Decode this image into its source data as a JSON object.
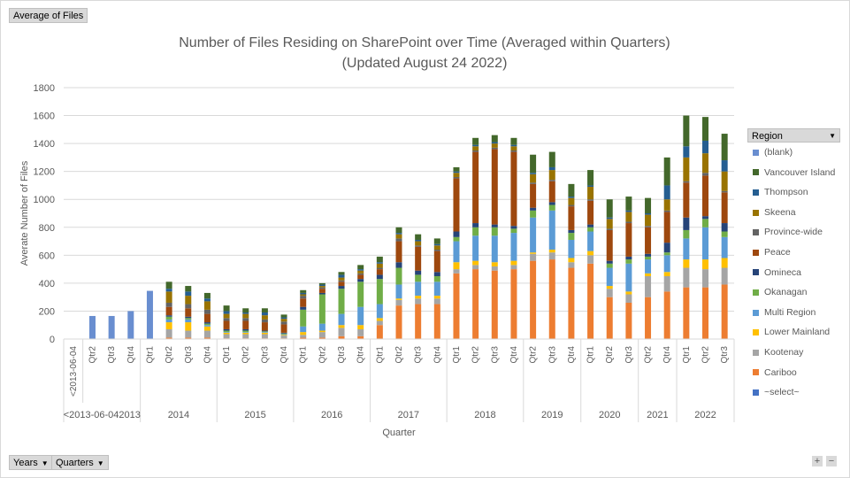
{
  "field_buttons": {
    "values_label": "Average of Files",
    "years_label": "Years",
    "quarters_label": "Quarters"
  },
  "legend": {
    "header": "Region"
  },
  "zoom": {
    "plus": "+",
    "minus": "−"
  },
  "chart_data": {
    "type": "bar",
    "stacked": true,
    "title": "Number of Files Residing on SharePoint over Time (Averaged within Quarters)",
    "subtitle": "(Updated August 24 2022)",
    "xlabel": "Quarter",
    "ylabel": "Averate Number of Files",
    "ylim": [
      0,
      1800
    ],
    "yticks": [
      0,
      200,
      400,
      600,
      800,
      1000,
      1200,
      1400,
      1600,
      1800
    ],
    "grid": true,
    "legend_position": "right",
    "categories": [
      {
        "group": "<2013-06-04",
        "label": "<2013-06-04"
      },
      {
        "group": "2013",
        "label": "Qtr2"
      },
      {
        "group": "2013",
        "label": "Qtr3"
      },
      {
        "group": "2013",
        "label": "Qtr4"
      },
      {
        "group": "2014",
        "label": "Qtr1"
      },
      {
        "group": "2014",
        "label": "Qtr2"
      },
      {
        "group": "2014",
        "label": "Qtr3"
      },
      {
        "group": "2014",
        "label": "Qtr4"
      },
      {
        "group": "2015",
        "label": "Qtr1"
      },
      {
        "group": "2015",
        "label": "Qtr2"
      },
      {
        "group": "2015",
        "label": "Qtr3"
      },
      {
        "group": "2015",
        "label": "Qtr4"
      },
      {
        "group": "2016",
        "label": "Qtr1"
      },
      {
        "group": "2016",
        "label": "Qtr2"
      },
      {
        "group": "2016",
        "label": "Qtr3"
      },
      {
        "group": "2016",
        "label": "Qtr4"
      },
      {
        "group": "2017",
        "label": "Qtr1"
      },
      {
        "group": "2017",
        "label": "Qtr2"
      },
      {
        "group": "2017",
        "label": "Qtr3"
      },
      {
        "group": "2017",
        "label": "Qtr4"
      },
      {
        "group": "2018",
        "label": "Qtr1"
      },
      {
        "group": "2018",
        "label": "Qtr2"
      },
      {
        "group": "2018",
        "label": "Qtr3"
      },
      {
        "group": "2018",
        "label": "Qtr4"
      },
      {
        "group": "2019",
        "label": "Qtr2"
      },
      {
        "group": "2019",
        "label": "Qtr3"
      },
      {
        "group": "2019",
        "label": "Qtr4"
      },
      {
        "group": "2020",
        "label": "Qtr1"
      },
      {
        "group": "2020",
        "label": "Qtr2"
      },
      {
        "group": "2020",
        "label": "Qtr3"
      },
      {
        "group": "2021",
        "label": "Qtr2"
      },
      {
        "group": "2021",
        "label": "Qtr4"
      },
      {
        "group": "2022",
        "label": "Qtr1"
      },
      {
        "group": "2022",
        "label": "Qtr2"
      },
      {
        "group": "2022",
        "label": "Qtr3"
      }
    ],
    "year_groups": [
      {
        "label": "<2013-06-042013",
        "start": 0,
        "end": 3
      },
      {
        "label": "2014",
        "start": 4,
        "end": 7
      },
      {
        "label": "2015",
        "start": 8,
        "end": 11
      },
      {
        "label": "2016",
        "start": 12,
        "end": 15
      },
      {
        "label": "2017",
        "start": 16,
        "end": 19
      },
      {
        "label": "2018",
        "start": 20,
        "end": 23
      },
      {
        "label": "2019",
        "start": 24,
        "end": 26
      },
      {
        "label": "2020",
        "start": 27,
        "end": 29
      },
      {
        "label": "2021",
        "start": 30,
        "end": 31
      },
      {
        "label": "2022",
        "start": 32,
        "end": 34
      }
    ],
    "series": [
      {
        "name": "~select~",
        "color": "#4472c4",
        "values": [
          0,
          0,
          0,
          0,
          0,
          0,
          0,
          0,
          0,
          0,
          0,
          0,
          0,
          0,
          0,
          0,
          0,
          0,
          0,
          0,
          0,
          0,
          0,
          0,
          0,
          0,
          0,
          0,
          0,
          0,
          0,
          0,
          0,
          0,
          0
        ]
      },
      {
        "name": "Cariboo",
        "color": "#ed7d31",
        "values": [
          0,
          0,
          0,
          0,
          0,
          10,
          10,
          10,
          5,
          5,
          5,
          5,
          10,
          10,
          20,
          20,
          100,
          240,
          250,
          250,
          470,
          500,
          490,
          500,
          560,
          570,
          510,
          540,
          300,
          260,
          300,
          340,
          370,
          370,
          390
        ]
      },
      {
        "name": "Kootenay",
        "color": "#a5a5a5",
        "values": [
          0,
          0,
          0,
          0,
          0,
          60,
          50,
          50,
          30,
          30,
          30,
          20,
          20,
          40,
          60,
          50,
          30,
          40,
          40,
          40,
          30,
          30,
          30,
          30,
          50,
          50,
          40,
          60,
          60,
          60,
          150,
          110,
          140,
          130,
          120
        ]
      },
      {
        "name": "Lower Mainland",
        "color": "#ffc000",
        "values": [
          0,
          0,
          0,
          0,
          0,
          50,
          60,
          30,
          10,
          10,
          10,
          5,
          20,
          10,
          20,
          30,
          20,
          10,
          20,
          20,
          50,
          30,
          30,
          30,
          10,
          20,
          30,
          30,
          20,
          20,
          20,
          30,
          60,
          70,
          70
        ]
      },
      {
        "name": "Multi Region",
        "color": "#5b9bd5",
        "values": [
          0,
          0,
          0,
          0,
          0,
          20,
          20,
          10,
          5,
          5,
          5,
          5,
          40,
          50,
          80,
          130,
          100,
          100,
          100,
          100,
          150,
          180,
          190,
          200,
          250,
          280,
          130,
          140,
          130,
          200,
          100,
          120,
          150,
          230,
          150
        ]
      },
      {
        "name": "Okanagan",
        "color": "#70ad47",
        "values": [
          0,
          0,
          0,
          0,
          0,
          20,
          10,
          10,
          10,
          10,
          5,
          5,
          120,
          210,
          180,
          180,
          180,
          120,
          50,
          40,
          30,
          60,
          60,
          30,
          50,
          40,
          50,
          30,
          30,
          30,
          20,
          20,
          60,
          60,
          40
        ]
      },
      {
        "name": "Omineca",
        "color": "#264478",
        "values": [
          0,
          0,
          0,
          0,
          0,
          10,
          10,
          10,
          10,
          10,
          5,
          5,
          20,
          10,
          20,
          20,
          30,
          40,
          30,
          30,
          40,
          30,
          20,
          20,
          20,
          20,
          20,
          20,
          20,
          20,
          20,
          70,
          90,
          20,
          60
        ]
      },
      {
        "name": "Peace",
        "color": "#9e480e",
        "values": [
          0,
          0,
          0,
          0,
          0,
          60,
          60,
          60,
          60,
          60,
          60,
          60,
          60,
          30,
          30,
          30,
          40,
          150,
          170,
          150,
          380,
          510,
          540,
          530,
          170,
          150,
          170,
          170,
          220,
          240,
          190,
          220,
          250,
          290,
          220
        ]
      },
      {
        "name": "Province-wide",
        "color": "#636363",
        "values": [
          0,
          0,
          0,
          0,
          0,
          30,
          30,
          30,
          20,
          20,
          20,
          20,
          20,
          10,
          10,
          10,
          10,
          20,
          10,
          10,
          10,
          10,
          10,
          10,
          10,
          10,
          10,
          10,
          10,
          10,
          10,
          10,
          10,
          20,
          10
        ]
      },
      {
        "name": "Skeena",
        "color": "#997300",
        "values": [
          0,
          0,
          0,
          0,
          0,
          80,
          60,
          60,
          30,
          30,
          30,
          20,
          10,
          10,
          20,
          20,
          30,
          30,
          30,
          30,
          30,
          30,
          30,
          30,
          60,
          70,
          50,
          90,
          70,
          70,
          80,
          80,
          170,
          140,
          140
        ]
      },
      {
        "name": "Thompson",
        "color": "#255e91",
        "values": [
          0,
          0,
          0,
          0,
          0,
          20,
          30,
          20,
          20,
          10,
          20,
          10,
          10,
          10,
          20,
          10,
          10,
          10,
          10,
          10,
          10,
          10,
          10,
          10,
          10,
          20,
          10,
          10,
          10,
          10,
          10,
          100,
          80,
          90,
          80
        ]
      },
      {
        "name": "Vancouver Island",
        "color": "#43682b",
        "values": [
          0,
          0,
          0,
          0,
          0,
          50,
          40,
          40,
          40,
          30,
          30,
          20,
          20,
          10,
          20,
          30,
          40,
          40,
          40,
          40,
          30,
          50,
          50,
          50,
          130,
          110,
          90,
          110,
          130,
          100,
          110,
          200,
          220,
          170,
          190
        ]
      },
      {
        "name": "(blank)",
        "color": "#698ed0",
        "values": [
          0,
          165,
          165,
          200,
          345,
          0,
          0,
          0,
          0,
          0,
          0,
          0,
          0,
          0,
          0,
          0,
          0,
          0,
          0,
          0,
          0,
          0,
          0,
          0,
          0,
          0,
          0,
          0,
          0,
          0,
          0,
          0,
          0,
          0,
          0
        ]
      }
    ]
  }
}
